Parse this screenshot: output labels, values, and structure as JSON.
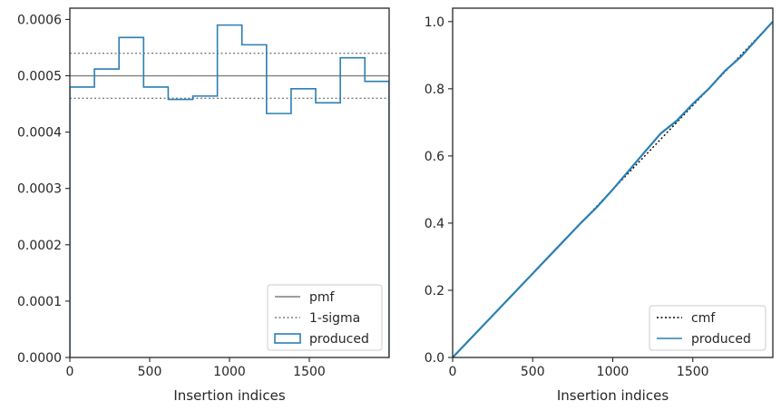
{
  "chart_data": [
    {
      "type": "line",
      "xlabel": "Insertion indices",
      "ylabel": "",
      "xlim": [
        0,
        2000
      ],
      "ylim": [
        0,
        0.00062
      ],
      "xticks": [
        0,
        500,
        1000,
        1500
      ],
      "xtick_labels": [
        "0",
        "500",
        "1000",
        "1500"
      ],
      "yticks": [
        0,
        0.0001,
        0.0002,
        0.0003,
        0.0004,
        0.0005,
        0.0006
      ],
      "ytick_labels": [
        "0.0000",
        "0.0001",
        "0.0002",
        "0.0003",
        "0.0004",
        "0.0005",
        "0.0006"
      ],
      "legend_position": "lower-right",
      "series": [
        {
          "name": "pmf",
          "kind": "hline",
          "y": 0.0005,
          "color": "#7f7f7f",
          "style": "solid"
        },
        {
          "name": "1-sigma",
          "kind": "hlines",
          "y": [
            0.00046,
            0.00054
          ],
          "color": "#7f7f7f",
          "style": "dotted"
        },
        {
          "name": "produced",
          "kind": "step-histogram",
          "color": "#2a7fb3",
          "bin_edges": [
            0,
            154,
            308,
            462,
            616,
            770,
            924,
            1078,
            1232,
            1386,
            1540,
            1694,
            1848,
            2000
          ],
          "values": [
            0.00048,
            0.000512,
            0.000568,
            0.00048,
            0.000458,
            0.000464,
            0.00059,
            0.000555,
            0.000433,
            0.000477,
            0.000452,
            0.000532,
            0.00049
          ]
        }
      ]
    },
    {
      "type": "line",
      "xlabel": "Insertion indices",
      "ylabel": "",
      "xlim": [
        0,
        2000
      ],
      "ylim": [
        0,
        1.04
      ],
      "xticks": [
        0,
        500,
        1000,
        1500
      ],
      "xtick_labels": [
        "0",
        "500",
        "1000",
        "1500"
      ],
      "yticks": [
        0,
        0.2,
        0.4,
        0.6,
        0.8,
        1.0
      ],
      "ytick_labels": [
        "0.0",
        "0.2",
        "0.4",
        "0.6",
        "0.8",
        "1.0"
      ],
      "legend_position": "lower-right",
      "series": [
        {
          "name": "cmf",
          "kind": "line",
          "color": "#000000",
          "style": "dotted",
          "x": [
            0,
            2000
          ],
          "y": [
            0,
            1.0
          ]
        },
        {
          "name": "produced",
          "kind": "line",
          "color": "#2a7fb3",
          "x": [
            0,
            100,
            200,
            300,
            400,
            500,
            600,
            700,
            800,
            900,
            1000,
            1100,
            1200,
            1300,
            1400,
            1500,
            1600,
            1700,
            1800,
            1900,
            2000
          ],
          "y": [
            0,
            0.05,
            0.1,
            0.15,
            0.2,
            0.25,
            0.3,
            0.35,
            0.4,
            0.447,
            0.5,
            0.556,
            0.612,
            0.667,
            0.705,
            0.755,
            0.8,
            0.853,
            0.895,
            0.948,
            1.0
          ]
        }
      ]
    }
  ]
}
